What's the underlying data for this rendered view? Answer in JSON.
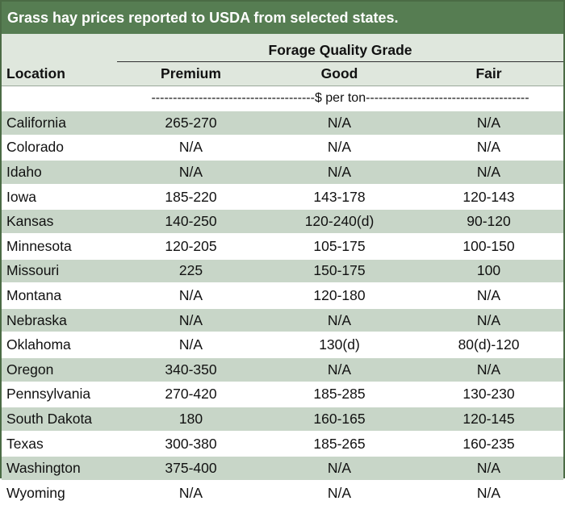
{
  "title": "Grass hay prices reported to USDA from selected states.",
  "header": {
    "group_label": "Forage Quality Grade",
    "location_label": "Location",
    "columns": [
      "Premium",
      "Good",
      "Fair"
    ],
    "unit_label": "--------------------------------------$ per ton--------------------------------------"
  },
  "rows": [
    {
      "location": "California",
      "premium": "265-270",
      "good": "N/A",
      "fair": "N/A"
    },
    {
      "location": "Colorado",
      "premium": "N/A",
      "good": "N/A",
      "fair": "N/A"
    },
    {
      "location": "Idaho",
      "premium": "N/A",
      "good": "N/A",
      "fair": "N/A"
    },
    {
      "location": "Iowa",
      "premium": "185-220",
      "good": "143-178",
      "fair": "120-143"
    },
    {
      "location": "Kansas",
      "premium": "140-250",
      "good": "120-240(d)",
      "fair": "90-120"
    },
    {
      "location": "Minnesota",
      "premium": "120-205",
      "good": "105-175",
      "fair": "100-150"
    },
    {
      "location": "Missouri",
      "premium": "225",
      "good": "150-175",
      "fair": "100"
    },
    {
      "location": "Montana",
      "premium": "N/A",
      "good": "120-180",
      "fair": "N/A"
    },
    {
      "location": "Nebraska",
      "premium": "N/A",
      "good": "N/A",
      "fair": "N/A"
    },
    {
      "location": "Oklahoma",
      "premium": "N/A",
      "good": "130(d)",
      "fair": "80(d)-120"
    },
    {
      "location": "Oregon",
      "premium": "340-350",
      "good": "N/A",
      "fair": "N/A"
    },
    {
      "location": "Pennsylvania",
      "premium": "270-420",
      "good": "185-285",
      "fair": "130-230"
    },
    {
      "location": "South Dakota",
      "premium": "180",
      "good": "160-165",
      "fair": "120-145"
    },
    {
      "location": "Texas",
      "premium": "300-380",
      "good": "185-265",
      "fair": "160-235"
    },
    {
      "location": "Washington",
      "premium": "375-400",
      "good": "N/A",
      "fair": "N/A"
    },
    {
      "location": "Wyoming",
      "premium": "N/A",
      "good": "N/A",
      "fair": "N/A"
    }
  ],
  "colors": {
    "title_bg": "#567d52",
    "header_bg": "#dfe7dd",
    "stripe_bg": "#c8d6c8",
    "border": "#4b6b45"
  }
}
